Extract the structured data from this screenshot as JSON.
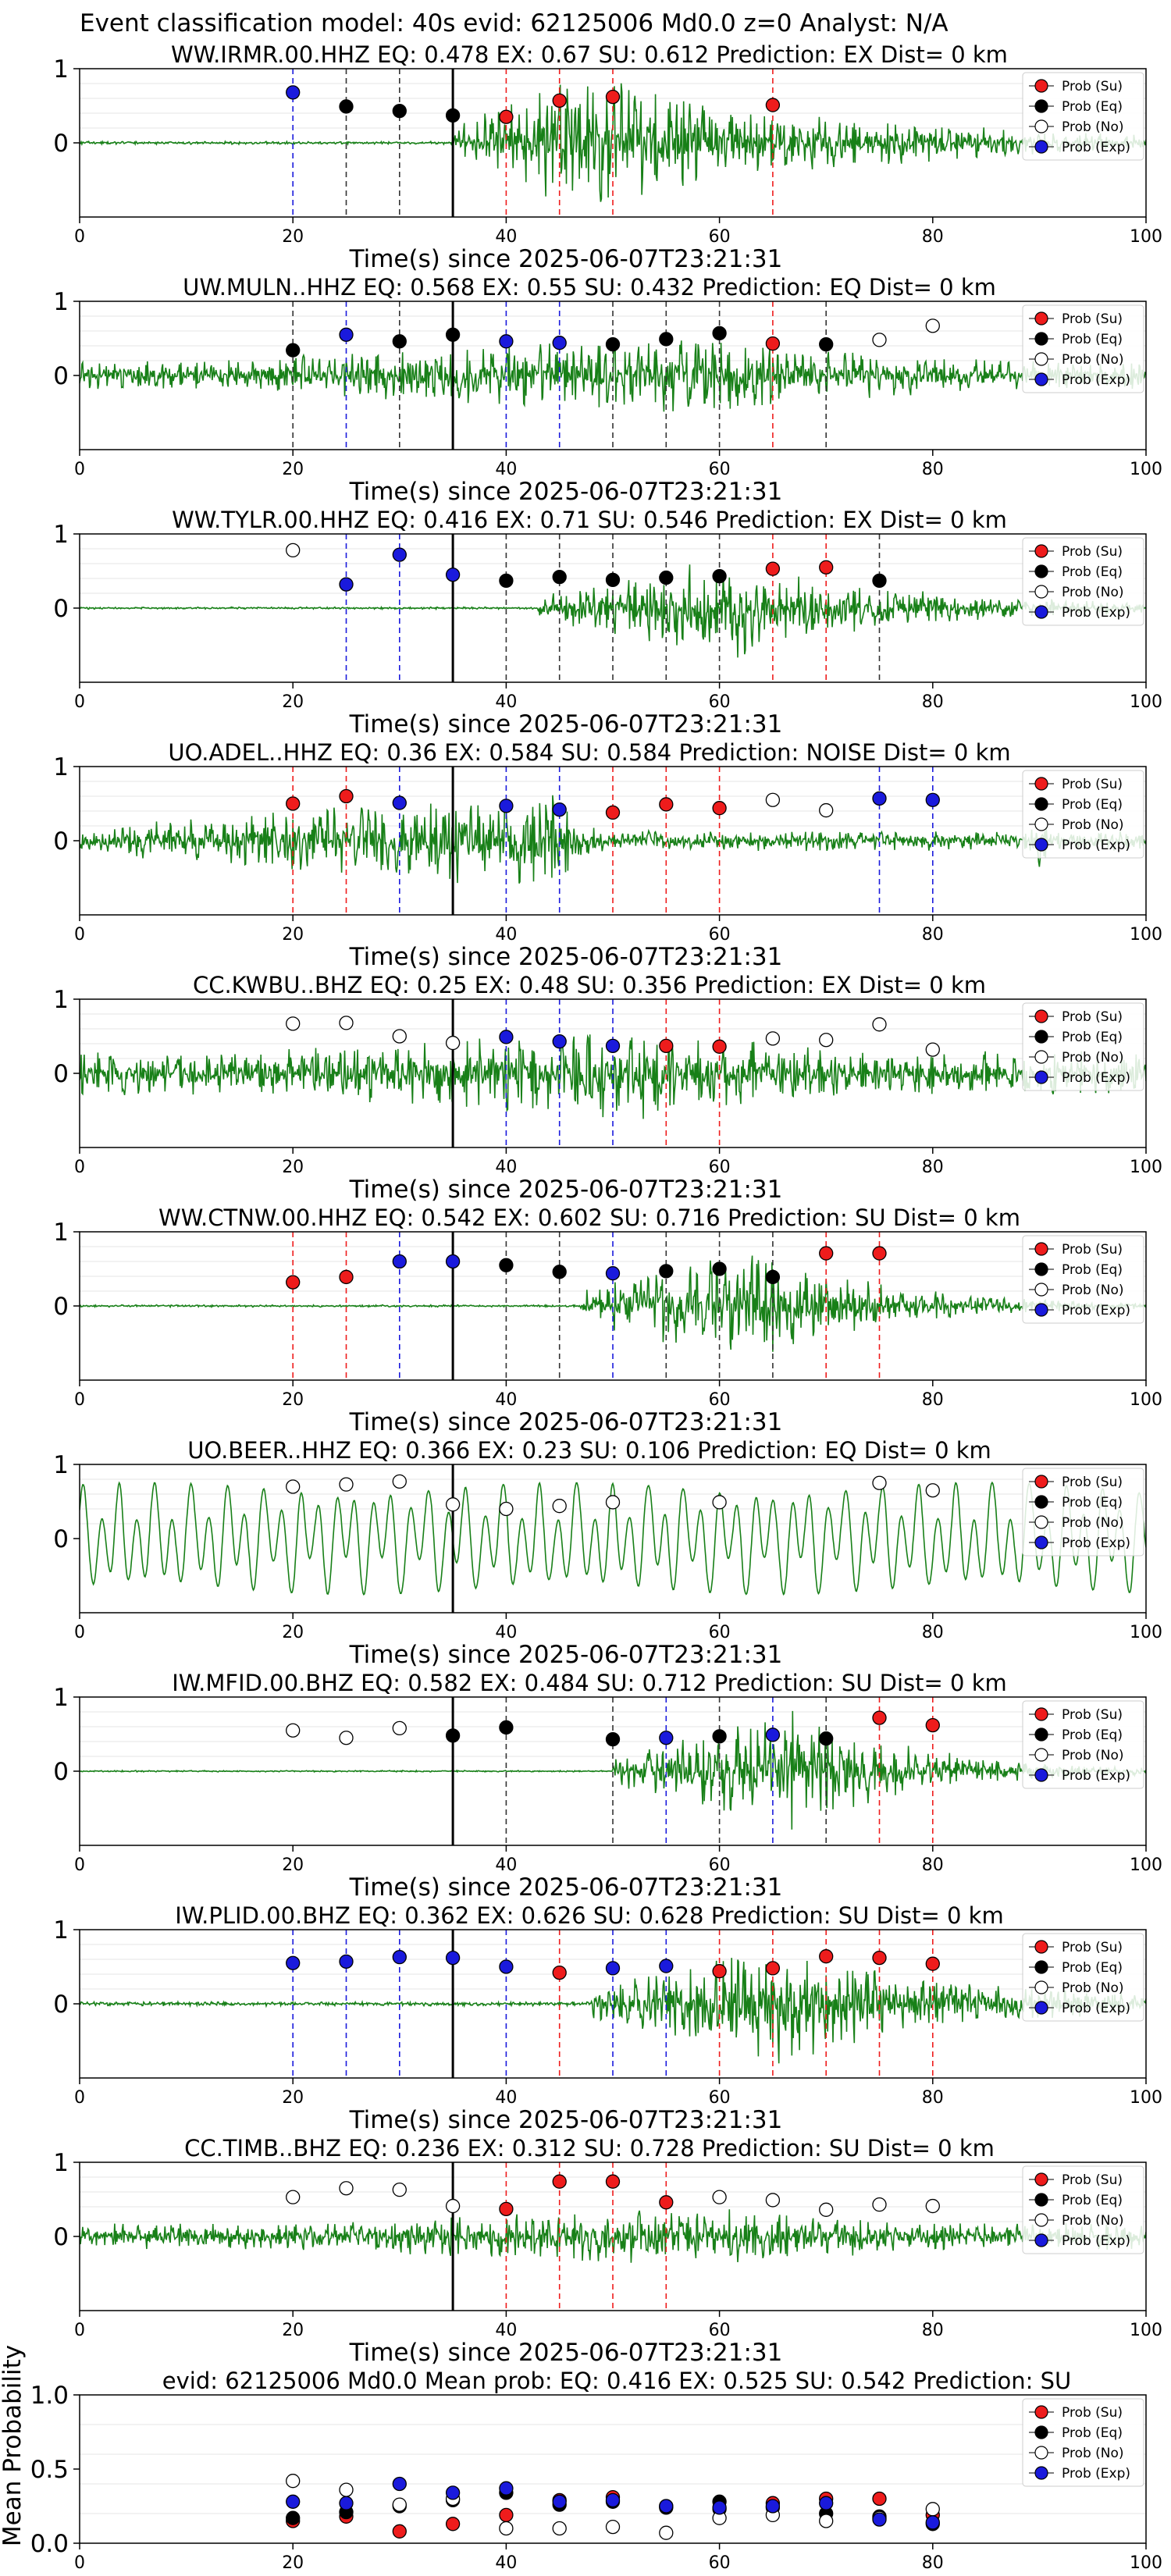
{
  "figure_title": "Event classification model: 40s evid: 62125006 Md0.0 z=0 Analyst: N/A",
  "colors": {
    "Su": "#ee1c1c",
    "Eq": "#000000",
    "No": "#ffffff",
    "Exp": "#1a1adc",
    "waveform": "#188018",
    "origin_line": "#000000"
  },
  "legend_labels": [
    "Prob (Su)",
    "Prob (Eq)",
    "Prob (No)",
    "Prob (Exp)"
  ],
  "chart_data": [
    {
      "type": "scatter",
      "title": "WW.IRMR.00.HHZ   EQ: 0.478  EX: 0.67  SU: 0.612   Prediction: EX    Dist= 0 km",
      "xlabel": "Time(s) since 2025-06-07T23:21:31",
      "xlim": [
        0,
        100
      ],
      "ylim": [
        -1,
        1
      ],
      "xticks": [
        "0",
        "20",
        "40",
        "60",
        "80",
        "100"
      ],
      "yticks": [
        "1",
        "0"
      ],
      "origin_time": 35,
      "waveform": {
        "onset": 35,
        "peak": 47,
        "decay": 25,
        "pre_amp": 0.02,
        "amp": 0.95,
        "freq": 6,
        "seed": 11
      },
      "points": [
        {
          "x": 20,
          "y": 0.68,
          "cls": "Exp"
        },
        {
          "x": 25,
          "y": 0.49,
          "cls": "Eq"
        },
        {
          "x": 30,
          "y": 0.43,
          "cls": "Eq"
        },
        {
          "x": 35,
          "y": 0.37,
          "cls": "Eq"
        },
        {
          "x": 40,
          "y": 0.35,
          "cls": "Su"
        },
        {
          "x": 45,
          "y": 0.57,
          "cls": "Su"
        },
        {
          "x": 50,
          "y": 0.62,
          "cls": "Su"
        },
        {
          "x": 65,
          "y": 0.51,
          "cls": "Su"
        }
      ]
    },
    {
      "type": "scatter",
      "title": "UW.MULN..HHZ   EQ: 0.568  EX: 0.55  SU: 0.432   Prediction: EQ    Dist= 0 km",
      "xlabel": "Time(s) since 2025-06-07T23:21:31",
      "xlim": [
        0,
        100
      ],
      "ylim": [
        -1,
        1
      ],
      "xticks": [
        "0",
        "20",
        "40",
        "60",
        "80",
        "100"
      ],
      "yticks": [
        "1",
        "0"
      ],
      "origin_time": 35,
      "waveform": {
        "onset": 0,
        "peak": 57,
        "decay": 30,
        "pre_amp": 0.2,
        "amp": 0.55,
        "freq": 5,
        "seed": 23
      },
      "points": [
        {
          "x": 20,
          "y": 0.34,
          "cls": "Eq"
        },
        {
          "x": 25,
          "y": 0.55,
          "cls": "Exp"
        },
        {
          "x": 30,
          "y": 0.46,
          "cls": "Eq"
        },
        {
          "x": 35,
          "y": 0.55,
          "cls": "Eq"
        },
        {
          "x": 40,
          "y": 0.46,
          "cls": "Exp"
        },
        {
          "x": 45,
          "y": 0.44,
          "cls": "Exp"
        },
        {
          "x": 50,
          "y": 0.42,
          "cls": "Eq"
        },
        {
          "x": 55,
          "y": 0.49,
          "cls": "Eq"
        },
        {
          "x": 60,
          "y": 0.57,
          "cls": "Eq"
        },
        {
          "x": 65,
          "y": 0.43,
          "cls": "Su"
        },
        {
          "x": 70,
          "y": 0.42,
          "cls": "Eq"
        },
        {
          "x": 75,
          "y": 0.48,
          "cls": "No"
        },
        {
          "x": 80,
          "y": 0.67,
          "cls": "No"
        }
      ]
    },
    {
      "type": "scatter",
      "title": "WW.TYLR.00.HHZ   EQ: 0.416  EX: 0.71  SU: 0.546   Prediction: EX    Dist= 0 km",
      "xlabel": "Time(s) since 2025-06-07T23:21:31",
      "xlim": [
        0,
        100
      ],
      "ylim": [
        -1,
        1
      ],
      "xticks": [
        "0",
        "20",
        "40",
        "60",
        "80",
        "100"
      ],
      "yticks": [
        "1",
        "0"
      ],
      "origin_time": 35,
      "waveform": {
        "onset": 43,
        "peak": 61,
        "decay": 18,
        "pre_amp": 0.015,
        "amp": 0.7,
        "freq": 6,
        "seed": 37
      },
      "points": [
        {
          "x": 20,
          "y": 0.78,
          "cls": "No"
        },
        {
          "x": 25,
          "y": 0.32,
          "cls": "Exp"
        },
        {
          "x": 30,
          "y": 0.72,
          "cls": "Exp"
        },
        {
          "x": 35,
          "y": 0.45,
          "cls": "Exp"
        },
        {
          "x": 40,
          "y": 0.37,
          "cls": "Eq"
        },
        {
          "x": 45,
          "y": 0.42,
          "cls": "Eq"
        },
        {
          "x": 50,
          "y": 0.38,
          "cls": "Eq"
        },
        {
          "x": 55,
          "y": 0.41,
          "cls": "Eq"
        },
        {
          "x": 60,
          "y": 0.43,
          "cls": "Eq"
        },
        {
          "x": 65,
          "y": 0.53,
          "cls": "Su"
        },
        {
          "x": 70,
          "y": 0.55,
          "cls": "Su"
        },
        {
          "x": 75,
          "y": 0.37,
          "cls": "Eq"
        }
      ]
    },
    {
      "type": "scatter",
      "title": "UO.ADEL..HHZ   EQ: 0.36  EX: 0.584  SU: 0.584   Prediction: NOISE    Dist= 0 km",
      "xlabel": "Time(s) since 2025-06-07T23:21:31",
      "xlim": [
        0,
        100
      ],
      "ylim": [
        -1,
        1
      ],
      "xticks": [
        "0",
        "20",
        "40",
        "60",
        "80",
        "100"
      ],
      "yticks": [
        "1",
        "0"
      ],
      "origin_time": 35,
      "waveform": {
        "onset": 0,
        "peak": 45,
        "decay": 3,
        "pre_amp": 0.14,
        "amp": 0.7,
        "freq": 6,
        "seed": 41,
        "bursts": [
          [
            20,
            0.55
          ],
          [
            45,
            0.7
          ],
          [
            90,
            0.4
          ]
        ]
      },
      "points": [
        {
          "x": 20,
          "y": 0.5,
          "cls": "Su"
        },
        {
          "x": 25,
          "y": 0.6,
          "cls": "Su"
        },
        {
          "x": 30,
          "y": 0.51,
          "cls": "Exp"
        },
        {
          "x": 40,
          "y": 0.47,
          "cls": "Exp"
        },
        {
          "x": 45,
          "y": 0.42,
          "cls": "Exp"
        },
        {
          "x": 50,
          "y": 0.38,
          "cls": "Su"
        },
        {
          "x": 55,
          "y": 0.49,
          "cls": "Su"
        },
        {
          "x": 60,
          "y": 0.44,
          "cls": "Su"
        },
        {
          "x": 65,
          "y": 0.55,
          "cls": "No"
        },
        {
          "x": 70,
          "y": 0.41,
          "cls": "No"
        },
        {
          "x": 75,
          "y": 0.57,
          "cls": "Exp"
        },
        {
          "x": 80,
          "y": 0.55,
          "cls": "Exp"
        }
      ]
    },
    {
      "type": "scatter",
      "title": "CC.KWBU..BHZ   EQ: 0.25  EX: 0.48  SU: 0.356   Prediction: EX    Dist= 0 km",
      "xlabel": "Time(s) since 2025-06-07T23:21:31",
      "xlim": [
        0,
        100
      ],
      "ylim": [
        -1,
        1
      ],
      "xticks": [
        "0",
        "20",
        "40",
        "60",
        "80",
        "100"
      ],
      "yticks": [
        "1",
        "0"
      ],
      "origin_time": 35,
      "waveform": {
        "onset": 0,
        "peak": 54,
        "decay": 25,
        "pre_amp": 0.3,
        "amp": 0.65,
        "freq": 3,
        "seed": 53
      },
      "points": [
        {
          "x": 20,
          "y": 0.67,
          "cls": "No"
        },
        {
          "x": 25,
          "y": 0.68,
          "cls": "No"
        },
        {
          "x": 30,
          "y": 0.5,
          "cls": "No"
        },
        {
          "x": 35,
          "y": 0.41,
          "cls": "No"
        },
        {
          "x": 40,
          "y": 0.49,
          "cls": "Exp"
        },
        {
          "x": 45,
          "y": 0.43,
          "cls": "Exp"
        },
        {
          "x": 50,
          "y": 0.37,
          "cls": "Exp"
        },
        {
          "x": 55,
          "y": 0.37,
          "cls": "Su"
        },
        {
          "x": 60,
          "y": 0.36,
          "cls": "Su"
        },
        {
          "x": 65,
          "y": 0.47,
          "cls": "No"
        },
        {
          "x": 70,
          "y": 0.45,
          "cls": "No"
        },
        {
          "x": 75,
          "y": 0.66,
          "cls": "No"
        },
        {
          "x": 80,
          "y": 0.32,
          "cls": "No"
        }
      ]
    },
    {
      "type": "scatter",
      "title": "WW.CTNW.00.HHZ   EQ: 0.542  EX: 0.602  SU: 0.716   Prediction: SU    Dist= 0 km",
      "xlabel": "Time(s) since 2025-06-07T23:21:31",
      "xlim": [
        0,
        100
      ],
      "ylim": [
        -1,
        1
      ],
      "xticks": [
        "0",
        "20",
        "40",
        "60",
        "80",
        "100"
      ],
      "yticks": [
        "1",
        "0"
      ],
      "origin_time": 35,
      "waveform": {
        "onset": 47,
        "peak": 63,
        "decay": 12,
        "pre_amp": 0.015,
        "amp": 0.85,
        "freq": 6,
        "seed": 61
      },
      "points": [
        {
          "x": 20,
          "y": 0.32,
          "cls": "Su"
        },
        {
          "x": 25,
          "y": 0.39,
          "cls": "Su"
        },
        {
          "x": 30,
          "y": 0.6,
          "cls": "Exp"
        },
        {
          "x": 35,
          "y": 0.6,
          "cls": "Exp"
        },
        {
          "x": 40,
          "y": 0.55,
          "cls": "Eq"
        },
        {
          "x": 45,
          "y": 0.46,
          "cls": "Eq"
        },
        {
          "x": 50,
          "y": 0.44,
          "cls": "Exp"
        },
        {
          "x": 55,
          "y": 0.47,
          "cls": "Eq"
        },
        {
          "x": 60,
          "y": 0.5,
          "cls": "Eq"
        },
        {
          "x": 65,
          "y": 0.39,
          "cls": "Eq"
        },
        {
          "x": 70,
          "y": 0.71,
          "cls": "Su"
        },
        {
          "x": 75,
          "y": 0.71,
          "cls": "Su"
        }
      ]
    },
    {
      "type": "scatter",
      "title": "UO.BEER..HHZ   EQ: 0.366  EX: 0.23  SU: 0.106   Prediction: EQ    Dist= 0 km",
      "xlabel": "Time(s) since 2025-06-07T23:21:31",
      "xlim": [
        0,
        100
      ],
      "ylim": [
        -1,
        1
      ],
      "xticks": [
        "0",
        "20",
        "40",
        "60",
        "80",
        "100"
      ],
      "yticks": [
        "1",
        "0"
      ],
      "origin_time": 35,
      "waveform": {
        "onset": 0,
        "peak": 50,
        "decay": 60,
        "pre_amp": 0.72,
        "amp": 0.0,
        "freq": 0.35,
        "seed": 71,
        "smooth": true
      },
      "points": [
        {
          "x": 20,
          "y": 0.7,
          "cls": "No"
        },
        {
          "x": 25,
          "y": 0.73,
          "cls": "No"
        },
        {
          "x": 30,
          "y": 0.77,
          "cls": "No"
        },
        {
          "x": 35,
          "y": 0.46,
          "cls": "No"
        },
        {
          "x": 40,
          "y": 0.4,
          "cls": "No"
        },
        {
          "x": 45,
          "y": 0.44,
          "cls": "No"
        },
        {
          "x": 50,
          "y": 0.49,
          "cls": "No"
        },
        {
          "x": 60,
          "y": 0.49,
          "cls": "No"
        },
        {
          "x": 75,
          "y": 0.75,
          "cls": "No"
        },
        {
          "x": 80,
          "y": 0.65,
          "cls": "No"
        }
      ]
    },
    {
      "type": "scatter",
      "title": "IW.MFID.00.BHZ   EQ: 0.582  EX: 0.484  SU: 0.712   Prediction: SU    Dist= 0 km",
      "xlabel": "Time(s) since 2025-06-07T23:21:31",
      "xlim": [
        0,
        100
      ],
      "ylim": [
        -1,
        1
      ],
      "xticks": [
        "0",
        "20",
        "40",
        "60",
        "80",
        "100"
      ],
      "yticks": [
        "1",
        "0"
      ],
      "origin_time": 35,
      "waveform": {
        "onset": 50,
        "peak": 67,
        "decay": 12,
        "pre_amp": 0.01,
        "amp": 0.85,
        "freq": 6,
        "seed": 83
      },
      "points": [
        {
          "x": 20,
          "y": 0.55,
          "cls": "No"
        },
        {
          "x": 25,
          "y": 0.45,
          "cls": "No"
        },
        {
          "x": 30,
          "y": 0.58,
          "cls": "No"
        },
        {
          "x": 35,
          "y": 0.48,
          "cls": "Eq"
        },
        {
          "x": 40,
          "y": 0.59,
          "cls": "Eq"
        },
        {
          "x": 50,
          "y": 0.43,
          "cls": "Eq"
        },
        {
          "x": 55,
          "y": 0.45,
          "cls": "Exp"
        },
        {
          "x": 60,
          "y": 0.47,
          "cls": "Eq"
        },
        {
          "x": 65,
          "y": 0.49,
          "cls": "Exp"
        },
        {
          "x": 70,
          "y": 0.44,
          "cls": "Eq"
        },
        {
          "x": 75,
          "y": 0.72,
          "cls": "Su"
        },
        {
          "x": 80,
          "y": 0.62,
          "cls": "Su"
        }
      ]
    },
    {
      "type": "scatter",
      "title": "IW.PLID.00.BHZ   EQ: 0.362  EX: 0.626  SU: 0.628   Prediction: SU    Dist= 0 km",
      "xlabel": "Time(s) since 2025-06-07T23:21:31",
      "xlim": [
        0,
        100
      ],
      "ylim": [
        -1,
        1
      ],
      "xticks": [
        "0",
        "20",
        "40",
        "60",
        "80",
        "100"
      ],
      "yticks": [
        "1",
        "0"
      ],
      "origin_time": 35,
      "waveform": {
        "onset": 48,
        "peak": 65,
        "decay": 20,
        "pre_amp": 0.03,
        "amp": 0.85,
        "freq": 6,
        "seed": 97
      },
      "points": [
        {
          "x": 20,
          "y": 0.55,
          "cls": "Exp"
        },
        {
          "x": 25,
          "y": 0.57,
          "cls": "Exp"
        },
        {
          "x": 30,
          "y": 0.63,
          "cls": "Exp"
        },
        {
          "x": 35,
          "y": 0.62,
          "cls": "Exp"
        },
        {
          "x": 40,
          "y": 0.5,
          "cls": "Exp"
        },
        {
          "x": 45,
          "y": 0.42,
          "cls": "Su"
        },
        {
          "x": 50,
          "y": 0.48,
          "cls": "Exp"
        },
        {
          "x": 55,
          "y": 0.51,
          "cls": "Exp"
        },
        {
          "x": 60,
          "y": 0.44,
          "cls": "Su"
        },
        {
          "x": 65,
          "y": 0.48,
          "cls": "Su"
        },
        {
          "x": 70,
          "y": 0.64,
          "cls": "Su"
        },
        {
          "x": 75,
          "y": 0.62,
          "cls": "Su"
        },
        {
          "x": 80,
          "y": 0.54,
          "cls": "Su"
        }
      ]
    },
    {
      "type": "scatter",
      "title": "CC.TIMB..BHZ   EQ: 0.236  EX: 0.312  SU: 0.728   Prediction: SU    Dist= 0 km",
      "xlabel": "Time(s) since 2025-06-07T23:21:31",
      "xlim": [
        0,
        100
      ],
      "ylim": [
        -1,
        1
      ],
      "xticks": [
        "0",
        "20",
        "40",
        "60",
        "80",
        "100"
      ],
      "yticks": [
        "1",
        "0"
      ],
      "origin_time": 35,
      "waveform": {
        "onset": 0,
        "peak": 60,
        "decay": 30,
        "pre_amp": 0.18,
        "amp": 0.4,
        "freq": 5,
        "seed": 101
      },
      "points": [
        {
          "x": 20,
          "y": 0.53,
          "cls": "No"
        },
        {
          "x": 25,
          "y": 0.65,
          "cls": "No"
        },
        {
          "x": 30,
          "y": 0.63,
          "cls": "No"
        },
        {
          "x": 35,
          "y": 0.41,
          "cls": "No"
        },
        {
          "x": 40,
          "y": 0.37,
          "cls": "Su"
        },
        {
          "x": 45,
          "y": 0.74,
          "cls": "Su"
        },
        {
          "x": 50,
          "y": 0.74,
          "cls": "Su"
        },
        {
          "x": 55,
          "y": 0.46,
          "cls": "Su"
        },
        {
          "x": 60,
          "y": 0.53,
          "cls": "No"
        },
        {
          "x": 65,
          "y": 0.49,
          "cls": "No"
        },
        {
          "x": 70,
          "y": 0.36,
          "cls": "No"
        },
        {
          "x": 75,
          "y": 0.43,
          "cls": "No"
        },
        {
          "x": 80,
          "y": 0.41,
          "cls": "No"
        }
      ]
    },
    {
      "type": "scatter",
      "title": "evid: 62125006  Md0.0   Mean prob:   EQ: 0.416  EX: 0.525  SU: 0.542   Prediction: SU",
      "ylabel": "Mean Probability",
      "xlim": [
        0,
        100
      ],
      "ylim": [
        0,
        1
      ],
      "xticks": [
        "0",
        "20",
        "40",
        "60",
        "80",
        "100"
      ],
      "yticks": [
        "1.0",
        "0.5",
        "0.0"
      ],
      "x": [
        20,
        25,
        30,
        35,
        40,
        45,
        50,
        55,
        60,
        65,
        70,
        75,
        80
      ],
      "series": [
        {
          "name": "Prob (Su)",
          "cls": "Su",
          "values": [
            0.15,
            0.18,
            0.08,
            0.13,
            0.19,
            0.29,
            0.31,
            0.25,
            0.23,
            0.27,
            0.3,
            0.3,
            0.19
          ]
        },
        {
          "name": "Prob (Eq)",
          "cls": "Eq",
          "values": [
            0.17,
            0.21,
            0.25,
            0.29,
            0.34,
            0.26,
            0.28,
            0.24,
            0.28,
            0.24,
            0.2,
            0.18,
            0.13
          ]
        },
        {
          "name": "Prob (No)",
          "cls": "No",
          "values": [
            0.42,
            0.36,
            0.26,
            0.3,
            0.1,
            0.1,
            0.11,
            0.07,
            0.17,
            0.19,
            0.15,
            0.17,
            0.23
          ]
        },
        {
          "name": "Prob (Exp)",
          "cls": "Exp",
          "values": [
            0.28,
            0.27,
            0.4,
            0.34,
            0.37,
            0.28,
            0.29,
            0.25,
            0.24,
            0.25,
            0.27,
            0.16,
            0.14
          ]
        }
      ]
    }
  ]
}
